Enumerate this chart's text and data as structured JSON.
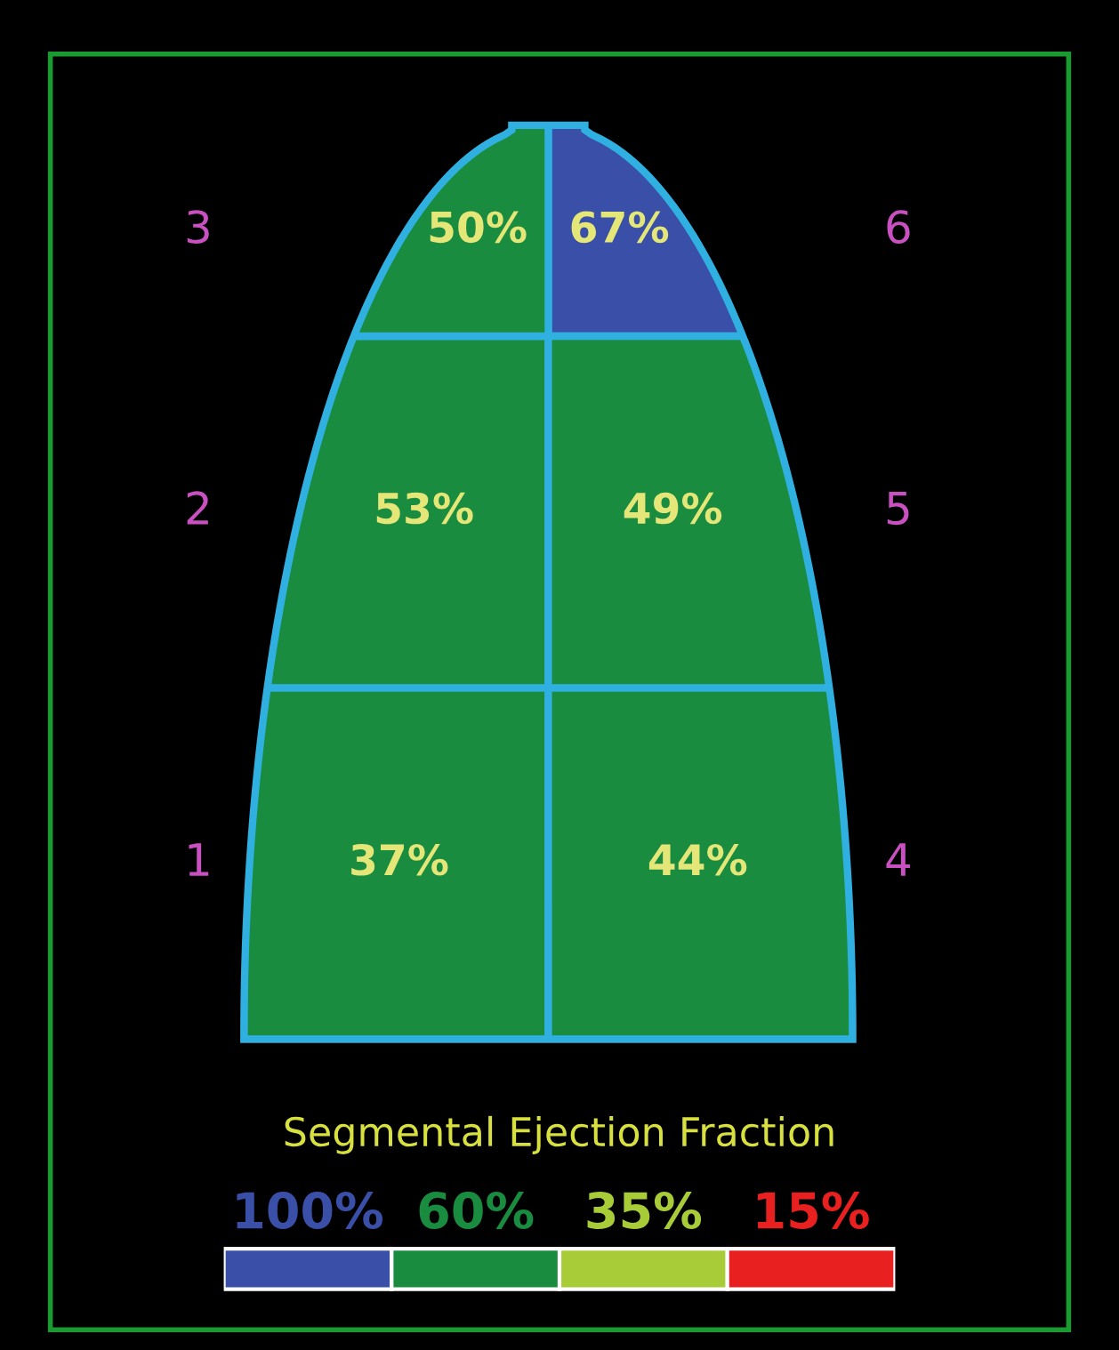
{
  "chart_data": {
    "type": "other",
    "categories": [
      "1",
      "2",
      "3",
      "4",
      "5",
      "6"
    ],
    "legend_title": "Segmental Ejection Fraction",
    "legend": "bottom",
    "series": [
      {
        "name": "100%",
        "color": "#3a4fa8",
        "values": [
          null,
          null,
          null,
          null,
          null,
          67
        ],
        "value_labels": [
          null,
          null,
          null,
          null,
          null,
          "67%"
        ]
      },
      {
        "name": "60%",
        "color": "#1a8c40",
        "values": [
          37,
          53,
          50,
          44,
          49,
          null
        ],
        "value_labels": [
          "37%",
          "53%",
          "50%",
          "44%",
          "49%",
          null
        ]
      },
      {
        "name": "35%",
        "color": "#a8cc38",
        "values": [
          null,
          null,
          null,
          null,
          null,
          null
        ]
      },
      {
        "name": "15%",
        "color": "#e82020",
        "values": [
          null,
          null,
          null,
          null,
          null,
          null
        ]
      }
    ]
  }
}
